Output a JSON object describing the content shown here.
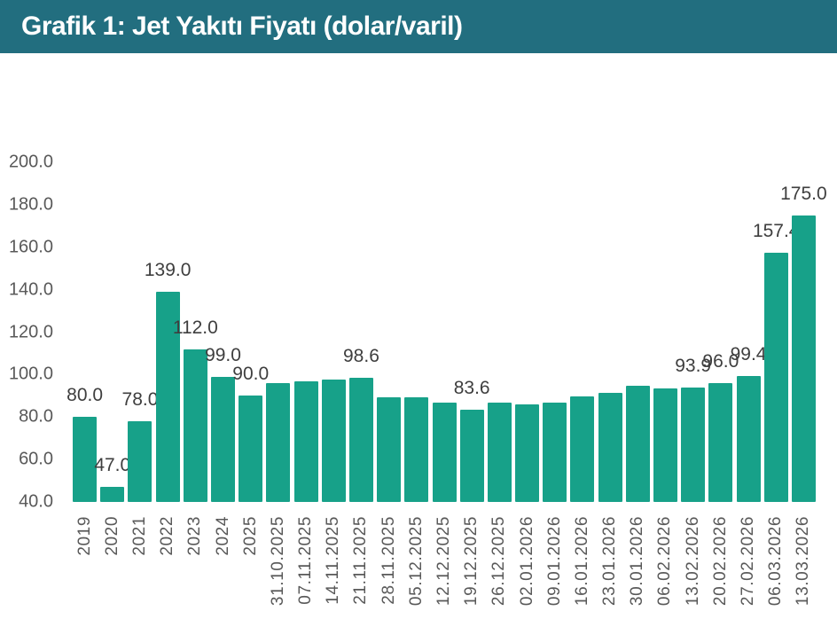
{
  "header": {
    "bg_color": "#226E7F",
    "text_color": "#FFFFFF"
  },
  "chart_data": {
    "type": "bar",
    "title": "Grafik 1: Jet Yakıtı Fiyatı (dolar/varil)",
    "xlabel": "",
    "ylabel": "",
    "categories": [
      "2019",
      "2020",
      "2021",
      "2022",
      "2023",
      "2024",
      "2025",
      "31.10.2025",
      "07.11.2025",
      "14.11.2025",
      "21.11.2025",
      "28.11.2025",
      "05.12.2025",
      "12.12.2025",
      "19.12.2025",
      "26.12.2025",
      "02.01.2026",
      "09.01.2026",
      "16.01.2026",
      "23.01.2026",
      "30.01.2026",
      "06.02.2026",
      "13.02.2026",
      "20.02.2026",
      "27.02.2026",
      "06.03.2026",
      "13.03.2026"
    ],
    "values": [
      80.0,
      47.0,
      78.0,
      139.0,
      112.0,
      99.0,
      90.0,
      96.0,
      96.8,
      97.5,
      98.6,
      89.5,
      89.2,
      86.9,
      83.6,
      86.9,
      86.0,
      86.6,
      89.7,
      91.3,
      94.8,
      93.6,
      93.9,
      96.0,
      99.4,
      157.4,
      175.0
    ],
    "data_labels": [
      "80.0",
      "47.0",
      "78.0",
      "139.0",
      "112.0",
      "99.0",
      "90.0",
      "",
      "",
      "",
      "98.6",
      "",
      "",
      "",
      "83.6",
      "",
      "",
      "",
      "",
      "",
      "",
      "",
      "93.9",
      "96.0",
      "99.4",
      "157.4",
      "175.0"
    ],
    "ylim": [
      40,
      200
    ],
    "ytick_step": 20,
    "ytick_labels": [
      "200.0",
      "180.0",
      "160.0",
      "140.0",
      "120.0",
      "100.0",
      "80.0",
      "60.0",
      "40.0"
    ],
    "grid": false,
    "legend": "none",
    "bar_color": "#17A189",
    "label_color": "#3E3E3E",
    "axis_color": "#595959"
  }
}
